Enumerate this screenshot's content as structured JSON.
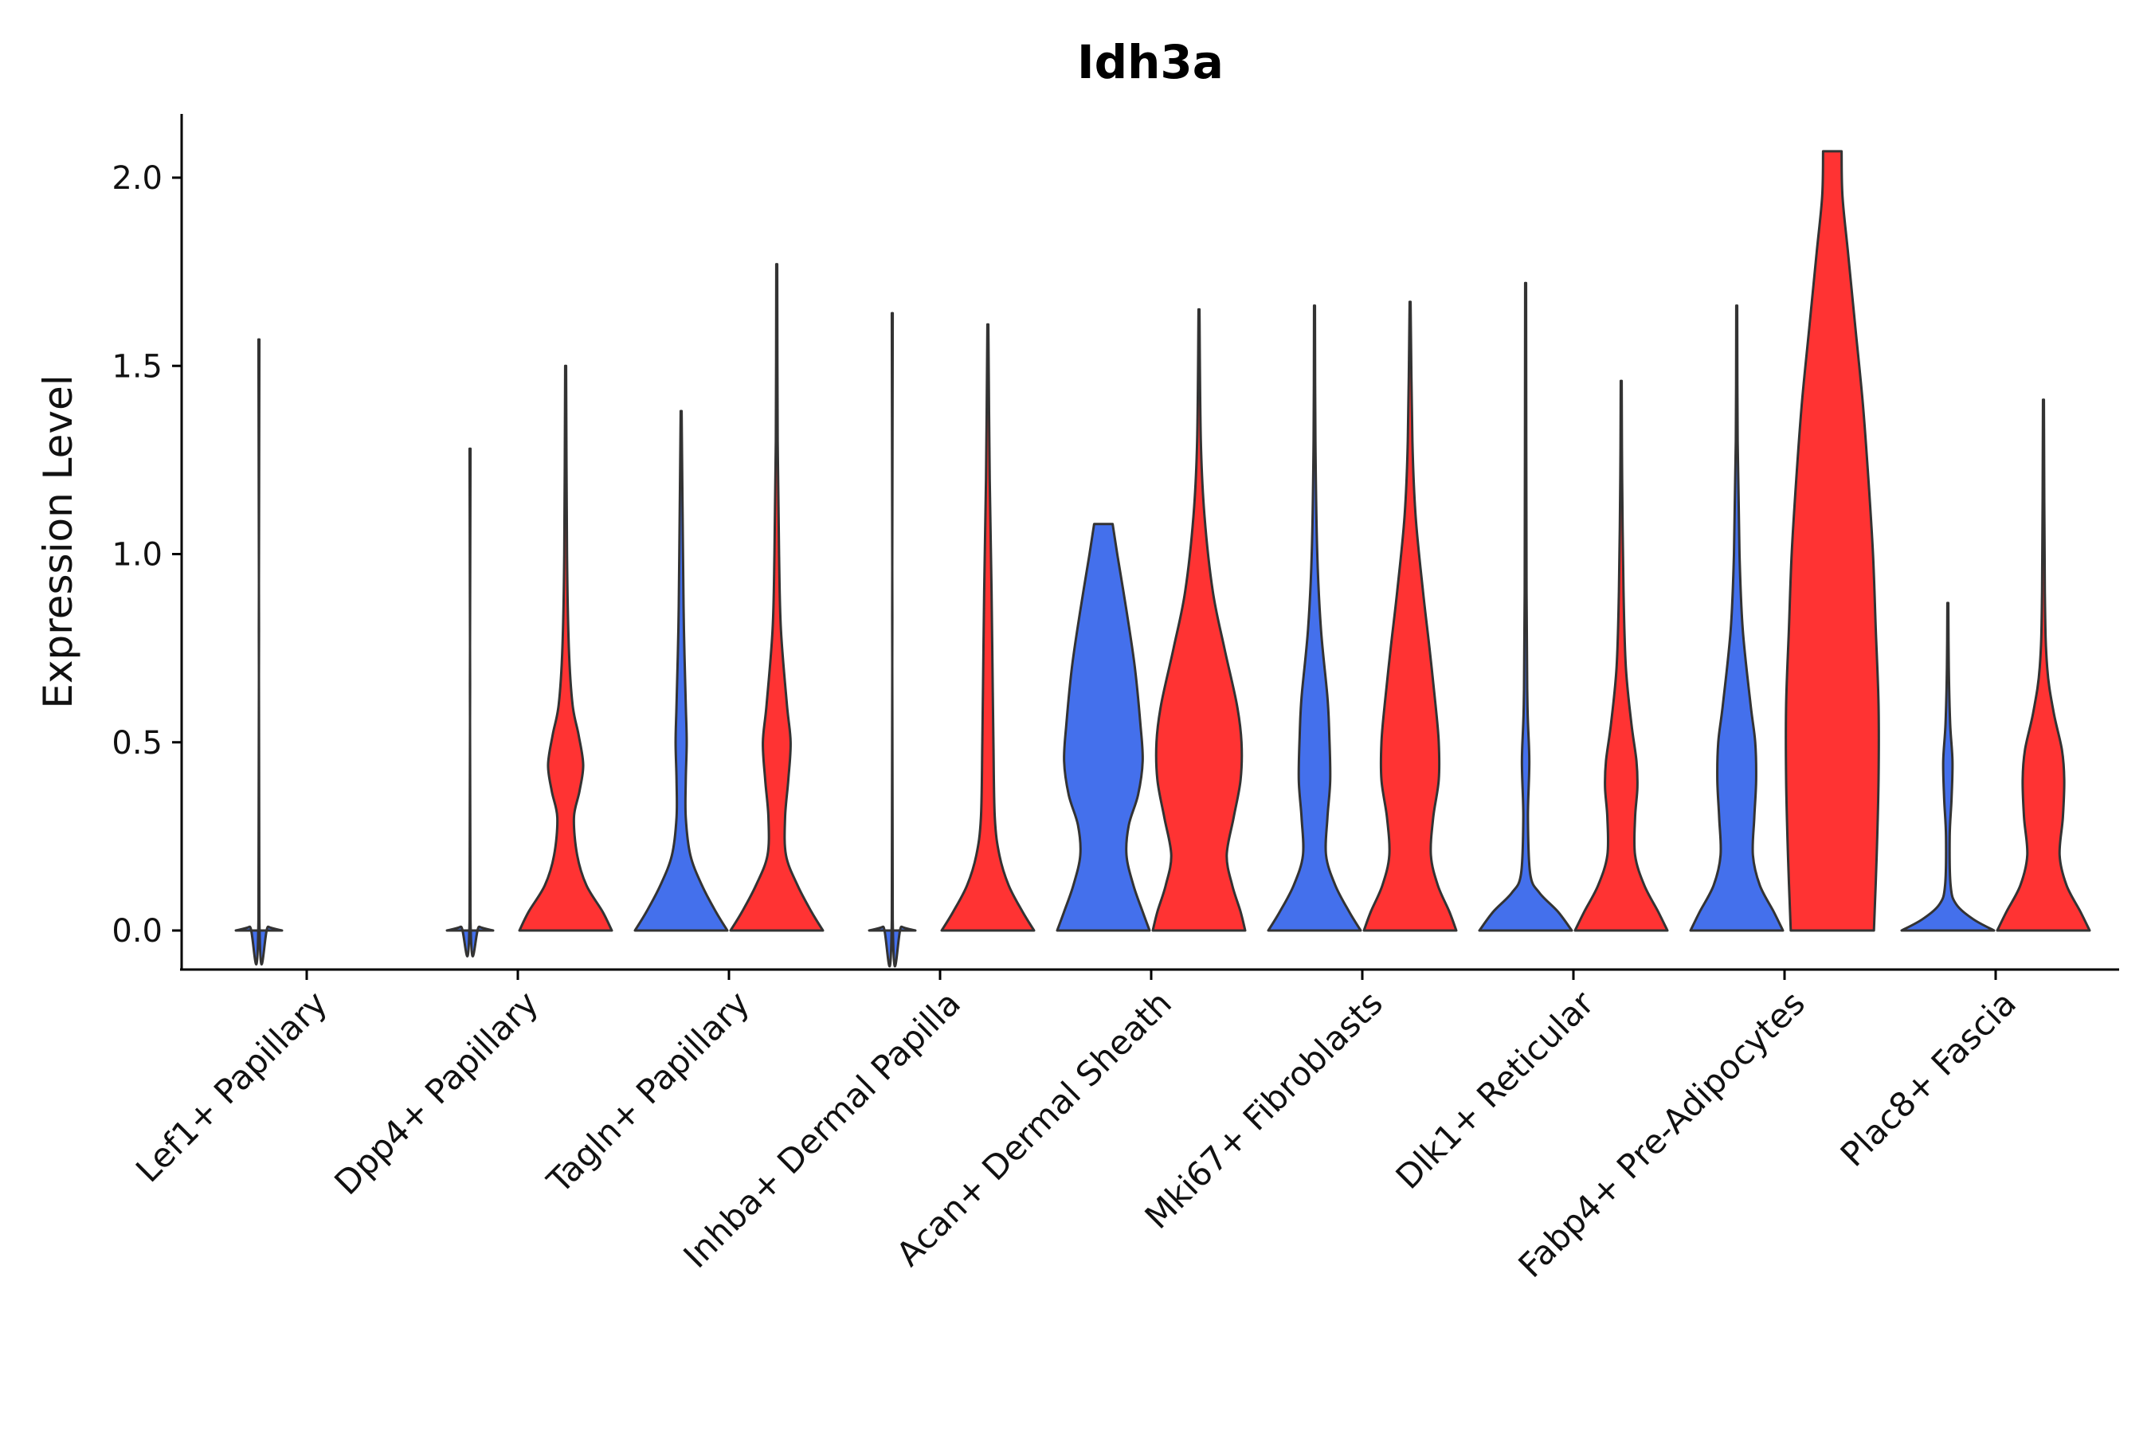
{
  "chart_data": {
    "type": "violin",
    "title": "Idh3a",
    "xlabel": "",
    "ylabel": "Expression Level",
    "ylim": [
      -0.1,
      2.17
    ],
    "yticks": [
      0.0,
      0.5,
      1.0,
      1.5,
      2.0
    ],
    "ytick_labels": [
      "0.0",
      "0.5",
      "1.0",
      "1.5",
      "2.0"
    ],
    "categories": [
      "Lef1+ Papillary",
      "Dpp4+ Papillary",
      "Tagln+ Papillary",
      "Inhba+ Dermal Papilla",
      "Acan+ Dermal Sheath",
      "Mki67+ Fibroblasts",
      "Dlk1+ Reticular",
      "Fabp4+ Pre-Adipocytes",
      "Plac8+ Fascia"
    ],
    "colors": {
      "group1": "#4470EC",
      "group2": "#FF3333",
      "outline": "#333333"
    },
    "groups": [
      "blue",
      "red"
    ],
    "violins": [
      {
        "category": "Lef1+ Papillary",
        "group": "blue",
        "max": 1.57,
        "profile": [
          [
            0.0,
            0.5
          ],
          [
            0.01,
            0.2
          ],
          [
            0.03,
            0.01
          ],
          [
            1.57,
            0.01
          ]
        ]
      },
      {
        "category": "Lef1+ Papillary",
        "group": "red",
        "max": 0.0,
        "profile": []
      },
      {
        "category": "Dpp4+ Papillary",
        "group": "blue",
        "max": 1.28,
        "profile": [
          [
            0.0,
            0.5
          ],
          [
            0.01,
            0.2
          ],
          [
            0.03,
            0.01
          ],
          [
            1.28,
            0.01
          ]
        ]
      },
      {
        "category": "Dpp4+ Papillary",
        "group": "red",
        "max": 1.5,
        "profile": [
          [
            0.0,
            1.0
          ],
          [
            0.05,
            0.8
          ],
          [
            0.12,
            0.45
          ],
          [
            0.2,
            0.25
          ],
          [
            0.3,
            0.18
          ],
          [
            0.37,
            0.3
          ],
          [
            0.44,
            0.38
          ],
          [
            0.52,
            0.28
          ],
          [
            0.6,
            0.15
          ],
          [
            0.75,
            0.07
          ],
          [
            1.0,
            0.03
          ],
          [
            1.5,
            0.01
          ]
        ]
      },
      {
        "category": "Tagln+ Papillary",
        "group": "blue",
        "max": 1.38,
        "profile": [
          [
            0.0,
            1.0
          ],
          [
            0.05,
            0.75
          ],
          [
            0.12,
            0.45
          ],
          [
            0.2,
            0.2
          ],
          [
            0.3,
            0.1
          ],
          [
            0.4,
            0.1
          ],
          [
            0.5,
            0.12
          ],
          [
            0.6,
            0.1
          ],
          [
            0.8,
            0.06
          ],
          [
            1.0,
            0.04
          ],
          [
            1.38,
            0.01
          ]
        ]
      },
      {
        "category": "Tagln+ Papillary",
        "group": "red",
        "max": 1.77,
        "profile": [
          [
            0.0,
            1.0
          ],
          [
            0.05,
            0.75
          ],
          [
            0.12,
            0.45
          ],
          [
            0.2,
            0.2
          ],
          [
            0.3,
            0.18
          ],
          [
            0.4,
            0.25
          ],
          [
            0.5,
            0.3
          ],
          [
            0.6,
            0.22
          ],
          [
            0.8,
            0.09
          ],
          [
            1.0,
            0.05
          ],
          [
            1.3,
            0.02
          ],
          [
            1.77,
            0.01
          ]
        ]
      },
      {
        "category": "Inhba+ Dermal Papilla",
        "group": "blue",
        "max": 1.64,
        "profile": [
          [
            0.0,
            0.5
          ],
          [
            0.01,
            0.2
          ],
          [
            0.03,
            0.01
          ],
          [
            1.64,
            0.01
          ]
        ]
      },
      {
        "category": "Inhba+ Dermal Papilla",
        "group": "red",
        "max": 1.61,
        "profile": [
          [
            0.0,
            1.0
          ],
          [
            0.05,
            0.75
          ],
          [
            0.12,
            0.45
          ],
          [
            0.2,
            0.25
          ],
          [
            0.3,
            0.15
          ],
          [
            0.5,
            0.12
          ],
          [
            0.7,
            0.1
          ],
          [
            0.9,
            0.08
          ],
          [
            1.2,
            0.04
          ],
          [
            1.61,
            0.01
          ]
        ]
      },
      {
        "category": "Acan+ Dermal Sheath",
        "group": "blue",
        "max": 1.08,
        "profile": [
          [
            0.0,
            1.0
          ],
          [
            0.05,
            0.85
          ],
          [
            0.12,
            0.65
          ],
          [
            0.2,
            0.5
          ],
          [
            0.28,
            0.55
          ],
          [
            0.36,
            0.75
          ],
          [
            0.45,
            0.85
          ],
          [
            0.55,
            0.8
          ],
          [
            0.7,
            0.68
          ],
          [
            0.85,
            0.5
          ],
          [
            1.0,
            0.3
          ],
          [
            1.08,
            0.2
          ]
        ]
      },
      {
        "category": "Acan+ Dermal Sheath",
        "group": "red",
        "max": 1.65,
        "profile": [
          [
            0.0,
            1.0
          ],
          [
            0.05,
            0.9
          ],
          [
            0.12,
            0.72
          ],
          [
            0.2,
            0.6
          ],
          [
            0.3,
            0.75
          ],
          [
            0.4,
            0.9
          ],
          [
            0.5,
            0.92
          ],
          [
            0.6,
            0.82
          ],
          [
            0.75,
            0.55
          ],
          [
            0.9,
            0.3
          ],
          [
            1.1,
            0.12
          ],
          [
            1.3,
            0.04
          ],
          [
            1.65,
            0.01
          ]
        ]
      },
      {
        "category": "Mki67+ Fibroblasts",
        "group": "blue",
        "max": 1.66,
        "profile": [
          [
            0.0,
            1.0
          ],
          [
            0.05,
            0.75
          ],
          [
            0.12,
            0.45
          ],
          [
            0.2,
            0.25
          ],
          [
            0.3,
            0.28
          ],
          [
            0.4,
            0.34
          ],
          [
            0.52,
            0.32
          ],
          [
            0.62,
            0.28
          ],
          [
            0.8,
            0.14
          ],
          [
            1.0,
            0.06
          ],
          [
            1.3,
            0.02
          ],
          [
            1.66,
            0.01
          ]
        ]
      },
      {
        "category": "Mki67+ Fibroblasts",
        "group": "red",
        "max": 1.67,
        "profile": [
          [
            0.0,
            1.0
          ],
          [
            0.05,
            0.85
          ],
          [
            0.12,
            0.6
          ],
          [
            0.2,
            0.45
          ],
          [
            0.3,
            0.5
          ],
          [
            0.4,
            0.62
          ],
          [
            0.5,
            0.62
          ],
          [
            0.6,
            0.55
          ],
          [
            0.75,
            0.42
          ],
          [
            0.9,
            0.28
          ],
          [
            1.1,
            0.12
          ],
          [
            1.3,
            0.05
          ],
          [
            1.67,
            0.01
          ]
        ]
      },
      {
        "category": "Dlk1+ Reticular",
        "group": "blue",
        "max": 1.72,
        "profile": [
          [
            0.0,
            1.0
          ],
          [
            0.05,
            0.7
          ],
          [
            0.1,
            0.3
          ],
          [
            0.15,
            0.1
          ],
          [
            0.3,
            0.05
          ],
          [
            0.45,
            0.08
          ],
          [
            0.6,
            0.04
          ],
          [
            0.9,
            0.02
          ],
          [
            1.72,
            0.01
          ]
        ]
      },
      {
        "category": "Dlk1+ Reticular",
        "group": "red",
        "max": 1.46,
        "profile": [
          [
            0.0,
            1.0
          ],
          [
            0.05,
            0.8
          ],
          [
            0.12,
            0.5
          ],
          [
            0.2,
            0.3
          ],
          [
            0.3,
            0.3
          ],
          [
            0.38,
            0.35
          ],
          [
            0.45,
            0.33
          ],
          [
            0.55,
            0.22
          ],
          [
            0.7,
            0.1
          ],
          [
            0.9,
            0.05
          ],
          [
            1.2,
            0.02
          ],
          [
            1.46,
            0.01
          ]
        ]
      },
      {
        "category": "Fabp4+ Pre-Adipocytes",
        "group": "blue",
        "max": 1.66,
        "profile": [
          [
            0.0,
            1.0
          ],
          [
            0.05,
            0.8
          ],
          [
            0.12,
            0.5
          ],
          [
            0.2,
            0.35
          ],
          [
            0.3,
            0.38
          ],
          [
            0.4,
            0.42
          ],
          [
            0.5,
            0.4
          ],
          [
            0.6,
            0.3
          ],
          [
            0.8,
            0.13
          ],
          [
            1.0,
            0.06
          ],
          [
            1.3,
            0.02
          ],
          [
            1.66,
            0.01
          ]
        ]
      },
      {
        "category": "Fabp4+ Pre-Adipocytes",
        "group": "red",
        "max": 2.07,
        "profile": [
          [
            0.0,
            0.9
          ],
          [
            0.2,
            0.96
          ],
          [
            0.4,
            1.0
          ],
          [
            0.6,
            1.0
          ],
          [
            0.8,
            0.94
          ],
          [
            1.0,
            0.88
          ],
          [
            1.2,
            0.78
          ],
          [
            1.4,
            0.66
          ],
          [
            1.6,
            0.5
          ],
          [
            1.8,
            0.34
          ],
          [
            1.95,
            0.22
          ],
          [
            2.07,
            0.2
          ]
        ]
      },
      {
        "category": "Plac8+ Fascia",
        "group": "blue",
        "max": 0.87,
        "profile": [
          [
            0.0,
            1.0
          ],
          [
            0.03,
            0.55
          ],
          [
            0.07,
            0.18
          ],
          [
            0.12,
            0.06
          ],
          [
            0.25,
            0.04
          ],
          [
            0.35,
            0.08
          ],
          [
            0.45,
            0.1
          ],
          [
            0.55,
            0.05
          ],
          [
            0.7,
            0.02
          ],
          [
            0.87,
            0.01
          ]
        ]
      },
      {
        "category": "Plac8+ Fascia",
        "group": "red",
        "max": 1.41,
        "profile": [
          [
            0.0,
            1.0
          ],
          [
            0.05,
            0.8
          ],
          [
            0.12,
            0.5
          ],
          [
            0.2,
            0.35
          ],
          [
            0.3,
            0.42
          ],
          [
            0.4,
            0.45
          ],
          [
            0.48,
            0.4
          ],
          [
            0.58,
            0.22
          ],
          [
            0.7,
            0.08
          ],
          [
            0.9,
            0.03
          ],
          [
            1.41,
            0.01
          ]
        ]
      }
    ]
  }
}
